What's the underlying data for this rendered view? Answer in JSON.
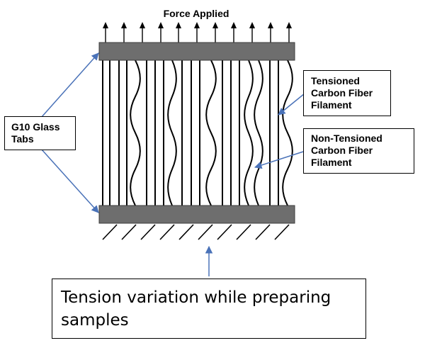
{
  "title": "Force Applied",
  "labels": {
    "tabs": [
      "G10 Glass",
      "Tabs"
    ],
    "tensioned": [
      "Tensioned",
      "Carbon Fiber",
      "Filament"
    ],
    "non_tensioned": [
      "Non-Tensioned",
      "Carbon Fiber",
      "Filament"
    ]
  },
  "caption": [
    "Tension variation while preparing",
    "samples"
  ],
  "colors": {
    "tab_fill": "#6e6e6e",
    "pointer": "#4a72b8",
    "filament": "#000000"
  },
  "icons": {
    "force": "arrow-up-icon",
    "ground": "hatch-ground-icon"
  }
}
